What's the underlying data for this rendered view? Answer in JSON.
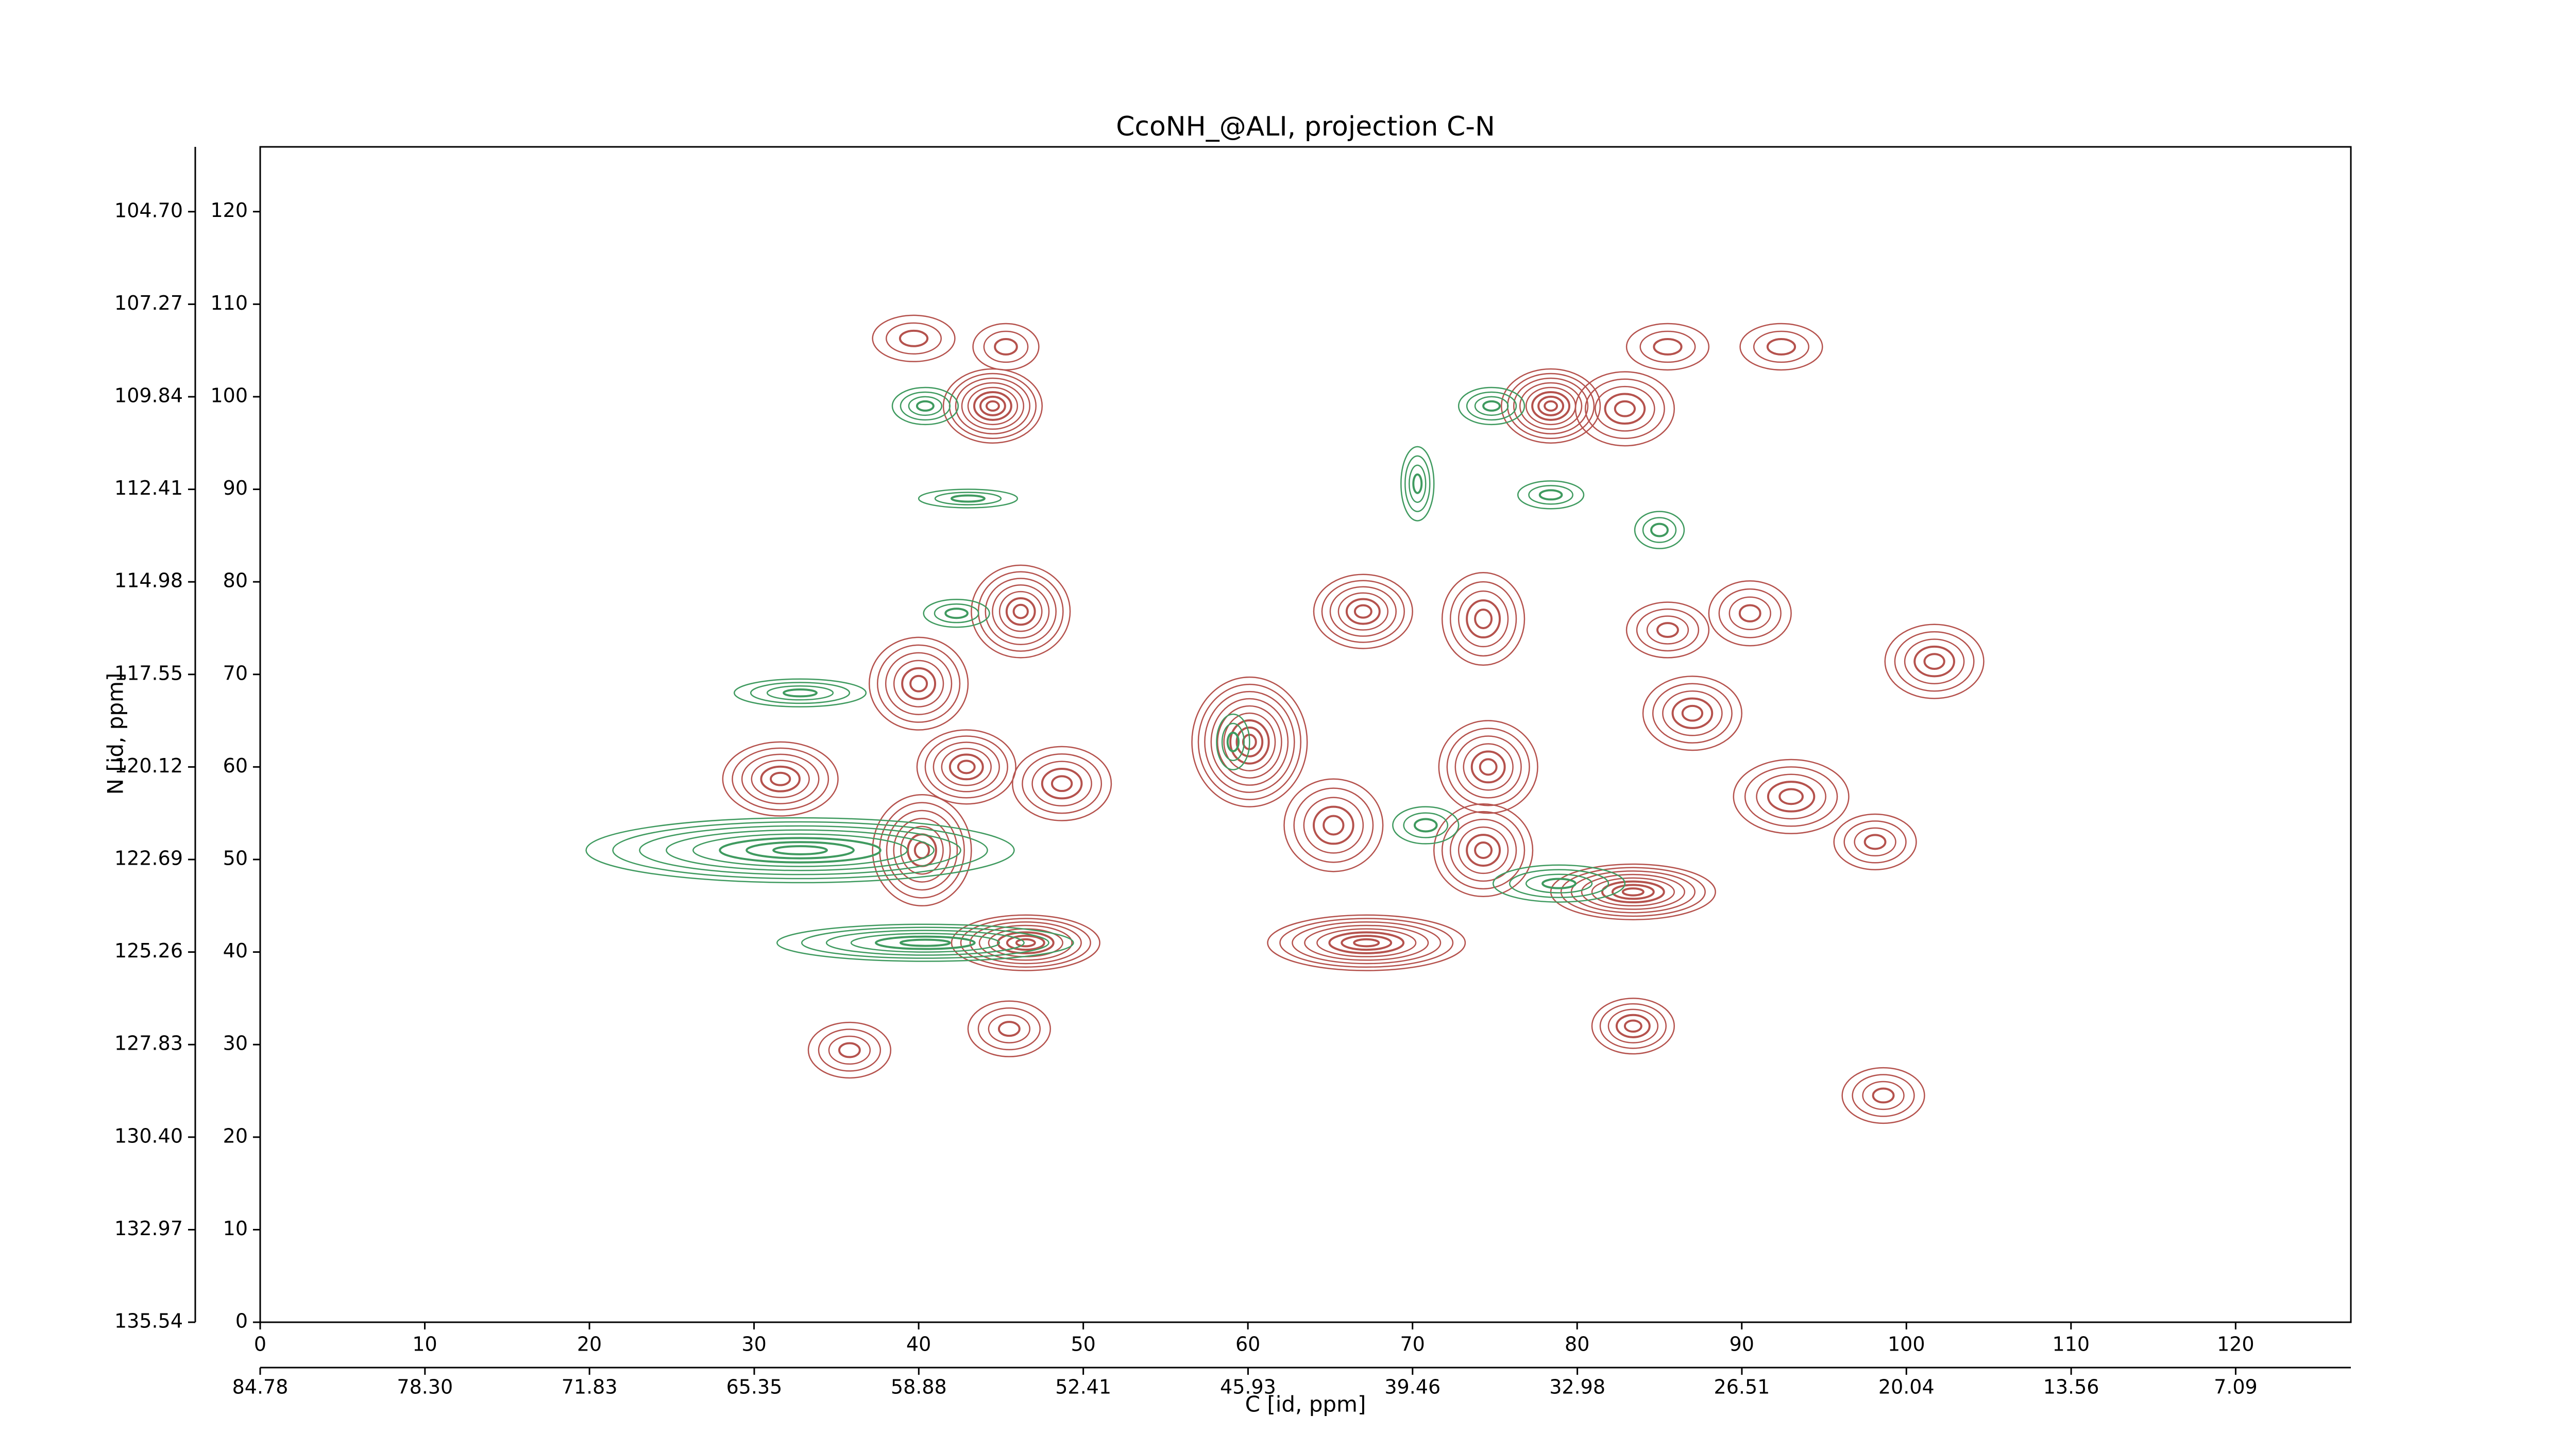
{
  "chart_data": {
    "type": "contour",
    "title": "CcoNH_@ALI, projection C-N",
    "xlabel": "C [id, ppm]",
    "ylabel": "N [id, ppm]",
    "xlim": [
      0,
      127
    ],
    "ylim": [
      0,
      127
    ],
    "xticks": [
      0,
      10,
      20,
      30,
      40,
      50,
      60,
      70,
      80,
      90,
      100,
      110,
      120
    ],
    "yticks": [
      0,
      10,
      20,
      30,
      40,
      50,
      60,
      70,
      80,
      90,
      100,
      110,
      120
    ],
    "x2lim": [
      84.78,
      2.56
    ],
    "x2ticks": [
      84.78,
      {
        "value": 78.3,
        "label": "78.30"
      },
      71.83,
      65.35,
      58.88,
      52.41,
      45.93,
      39.46,
      32.98,
      26.51,
      20.04,
      13.56,
      7.09
    ],
    "y2lim": [
      135.54,
      102.9
    ],
    "y2ticks": [
      {
        "value": 104.7,
        "label": "104.70"
      },
      107.27,
      109.84,
      112.41,
      114.98,
      117.55,
      120.12,
      122.69,
      125.26,
      127.83,
      {
        "value": 130.4,
        "label": "130.40"
      },
      132.97,
      135.54
    ],
    "series": [
      {
        "color": "#b5524d",
        "x": [
          44.5,
          78.4,
          46.2,
          67,
          74.3,
          60.1,
          31.6,
          42.9,
          48.7,
          74.6,
          40,
          101.7,
          90.5,
          46.5,
          67.2,
          83.4,
          74.3,
          93,
          87,
          65.2,
          83.4,
          45.5,
          35.8,
          98.6,
          40.2,
          92.4,
          39.7,
          45.3,
          85.5,
          82.9,
          85.5,
          98.1
        ],
        "y": [
          99,
          99,
          76.8,
          76.8,
          76,
          62.7,
          58.7,
          60,
          58.2,
          60,
          69,
          71.4,
          76.6,
          41,
          41,
          46.5,
          51,
          56.8,
          65.8,
          53.7,
          32,
          31.7,
          29.4,
          24.5,
          51,
          105.4,
          106.3,
          105.4,
          105.4,
          98.7,
          74.8,
          51.9
        ],
        "rx": [
          3,
          3,
          3,
          3,
          2.5,
          3.5,
          3.5,
          3,
          3,
          3,
          3,
          3,
          2.5,
          4.5,
          6,
          5,
          3,
          3.5,
          3,
          3,
          2.5,
          2.5,
          2.5,
          2.5,
          3,
          2.5,
          2.5,
          2,
          2.5,
          3,
          2.5,
          2.5
        ],
        "ry": [
          4,
          4,
          5,
          4,
          5,
          7,
          4,
          4,
          4,
          5,
          5,
          4,
          3.5,
          3,
          3,
          3,
          5,
          4,
          4,
          5,
          3,
          3,
          3,
          3,
          6,
          2.5,
          2.5,
          2.5,
          2.5,
          4,
          3,
          3
        ],
        "levels": [
          8,
          8,
          7,
          6,
          5,
          9,
          6,
          6,
          5,
          6,
          6,
          5,
          4,
          8,
          8,
          8,
          6,
          5,
          5,
          5,
          5,
          4,
          4,
          4,
          7,
          3,
          3,
          3,
          3,
          5,
          4,
          4
        ]
      },
      {
        "color": "#3f9a5f",
        "x": [
          32.8,
          40.4,
          78.9,
          70.8,
          70.3,
          74.8,
          40.4,
          43,
          32.8,
          42.3,
          59.1,
          78.4,
          85
        ],
        "y": [
          51,
          41,
          47.4,
          53.7,
          90.6,
          99,
          99,
          89,
          68,
          76.6,
          62.7,
          89.4,
          85.6
        ],
        "rx": [
          13,
          9,
          4,
          2,
          1,
          2,
          2,
          3,
          4,
          2,
          1,
          2,
          1.5
        ],
        "ry": [
          3.5,
          2,
          2,
          2,
          4,
          2,
          2,
          1,
          1.5,
          1.5,
          3,
          1.5,
          2
        ],
        "levels": [
          8,
          6,
          4,
          3,
          4,
          4,
          4,
          3,
          4,
          3,
          3,
          3,
          3
        ]
      }
    ]
  }
}
